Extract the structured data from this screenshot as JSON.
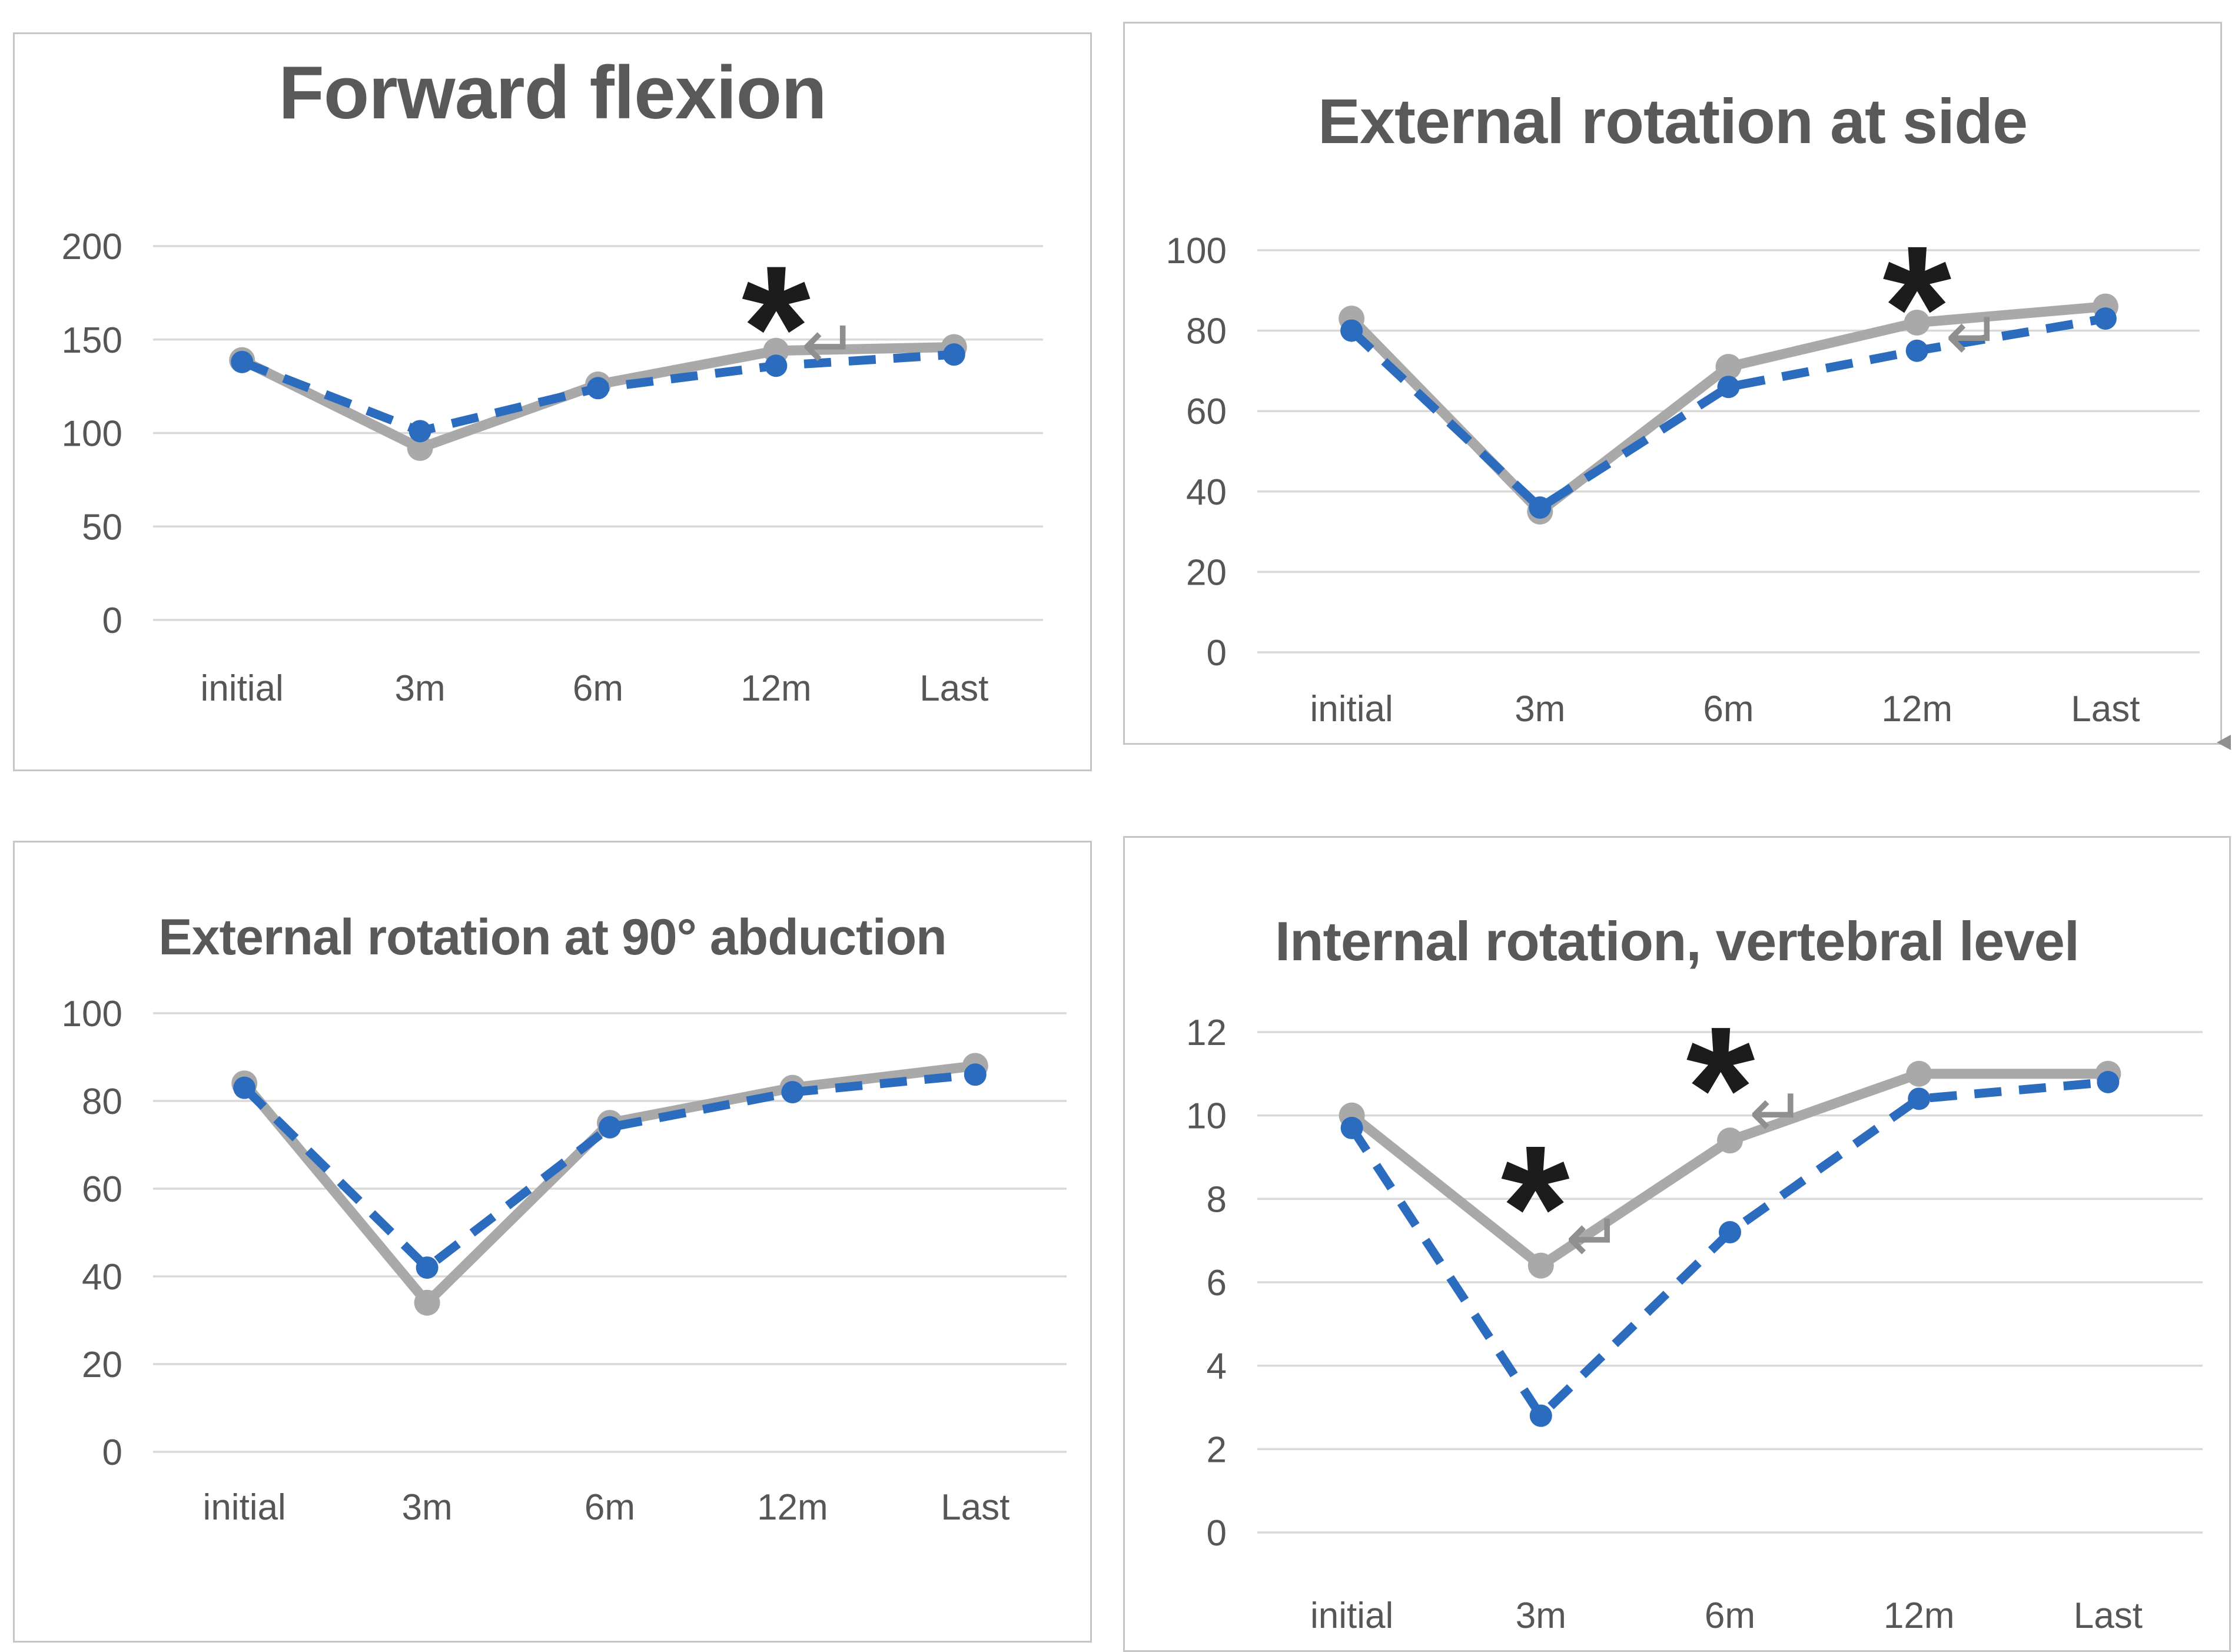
{
  "figure": {
    "description_titles": [
      "Forward flexion",
      "External rotation at side",
      "External rotation at 90° abduction",
      "Internal rotation, vertebral level"
    ]
  },
  "colors": {
    "gray_series": "#a9a9a9",
    "blue_series": "#2b6cbe",
    "title_text": "#595959",
    "axis_text": "#565656",
    "gridline": "#d9d9d9",
    "panel_border": "#c6c6c6",
    "asterisk": "#1c1c1c",
    "artifact_glyph": "#8f8f8f"
  },
  "chart_data": [
    {
      "type": "line",
      "title": "Forward flexion",
      "categories": [
        "initial",
        "3m",
        "6m",
        "12m",
        "Last"
      ],
      "xlabel": "",
      "ylabel": "",
      "ylim": [
        0,
        200
      ],
      "yticks": [
        0,
        50,
        100,
        150,
        200
      ],
      "grid": true,
      "legend": "none",
      "series": [
        {
          "name": "gray-solid",
          "color": "#a9a9a9",
          "line": "solid",
          "values": [
            139,
            92,
            126,
            144,
            146
          ]
        },
        {
          "name": "blue-dashed",
          "color": "#2b6cbe",
          "line": "dashed",
          "values": [
            138,
            101,
            124,
            136,
            142
          ]
        }
      ],
      "annotations": [
        {
          "kind": "significance-asterisk",
          "text": "*",
          "x": 3,
          "y": 171
        },
        {
          "kind": "return-artifact",
          "text": "↵",
          "x": 3.3,
          "y": 148
        }
      ]
    },
    {
      "type": "line",
      "title": "External rotation at side",
      "categories": [
        "initial",
        "3m",
        "6m",
        "12m",
        "Last"
      ],
      "xlabel": "",
      "ylabel": "",
      "ylim": [
        0,
        100
      ],
      "yticks": [
        0,
        20,
        40,
        60,
        80,
        100
      ],
      "grid": true,
      "legend": "none",
      "series": [
        {
          "name": "gray-solid",
          "color": "#a9a9a9",
          "line": "solid",
          "values": [
            83,
            35,
            71,
            82,
            86
          ]
        },
        {
          "name": "blue-dashed",
          "color": "#2b6cbe",
          "line": "dashed",
          "values": [
            80,
            36,
            66,
            75,
            83
          ]
        }
      ],
      "annotations": [
        {
          "kind": "significance-asterisk",
          "text": "*",
          "x": 3,
          "y": 92.5
        },
        {
          "kind": "return-artifact",
          "text": "↵",
          "x": 3.3,
          "y": 79
        }
      ]
    },
    {
      "type": "line",
      "title": "External rotation at 90° abduction",
      "categories": [
        "initial",
        "3m",
        "6m",
        "12m",
        "Last"
      ],
      "xlabel": "",
      "ylabel": "",
      "ylim": [
        0,
        100
      ],
      "yticks": [
        0,
        20,
        40,
        60,
        80,
        100
      ],
      "grid": true,
      "legend": "none",
      "series": [
        {
          "name": "gray-solid",
          "color": "#a9a9a9",
          "line": "solid",
          "values": [
            84,
            34,
            75,
            83,
            88
          ]
        },
        {
          "name": "blue-dashed",
          "color": "#2b6cbe",
          "line": "dashed",
          "values": [
            83,
            42,
            74,
            82,
            86
          ]
        }
      ],
      "annotations": []
    },
    {
      "type": "line",
      "title": "Internal rotation, vertebral level",
      "categories": [
        "initial",
        "3m",
        "6m",
        "12m",
        "Last"
      ],
      "xlabel": "",
      "ylabel": "",
      "ylim": [
        0,
        12
      ],
      "yticks": [
        0,
        2,
        4,
        6,
        8,
        10,
        12
      ],
      "grid": true,
      "legend": "none",
      "series": [
        {
          "name": "gray-solid",
          "color": "#a9a9a9",
          "line": "solid",
          "values": [
            10,
            6.4,
            9.4,
            11,
            11
          ]
        },
        {
          "name": "blue-dashed",
          "color": "#2b6cbe",
          "line": "dashed",
          "values": [
            9.7,
            2.8,
            7.2,
            10.4,
            10.8
          ]
        }
      ],
      "annotations": [
        {
          "kind": "significance-asterisk",
          "text": "*",
          "x": 0.97,
          "y": 8.45
        },
        {
          "kind": "significance-asterisk",
          "text": "*",
          "x": 1.95,
          "y": 11.3
        },
        {
          "kind": "return-artifact",
          "text": "↵",
          "x": 1.28,
          "y": 7.1
        },
        {
          "kind": "return-artifact",
          "text": "↵",
          "x": 2.25,
          "y": 10.1
        }
      ]
    }
  ]
}
